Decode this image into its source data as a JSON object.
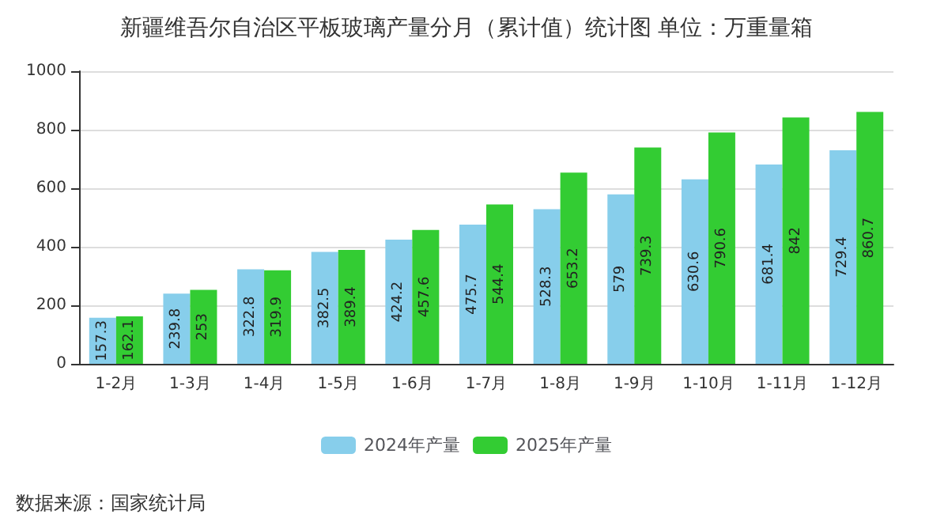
{
  "chart_data": {
    "type": "bar",
    "title": "新疆维吾尔自治区平板玻璃产量分月（累计值）统计图 单位：万重量箱",
    "categories": [
      "1-2月",
      "1-3月",
      "1-4月",
      "1-5月",
      "1-6月",
      "1-7月",
      "1-8月",
      "1-9月",
      "1-10月",
      "1-11月",
      "1-12月"
    ],
    "series": [
      {
        "name": "2024年产量",
        "color": "#87ceeb",
        "values": [
          157.3,
          239.8,
          322.8,
          382.5,
          424.2,
          475.7,
          528.3,
          579,
          630.6,
          681.4,
          729.4
        ]
      },
      {
        "name": "2025年产量",
        "color": "#33cc33",
        "values": [
          162.1,
          253,
          319.9,
          389.4,
          457.6,
          544.4,
          653.2,
          739.3,
          790.6,
          842,
          860.7
        ]
      }
    ],
    "ylim": [
      0,
      1000
    ],
    "yticks": [
      0,
      200,
      400,
      600,
      800,
      1000
    ],
    "grid": "y",
    "legend": "bottom",
    "data_labels": true,
    "annotations": [
      "数据来源：国家统计局"
    ]
  }
}
